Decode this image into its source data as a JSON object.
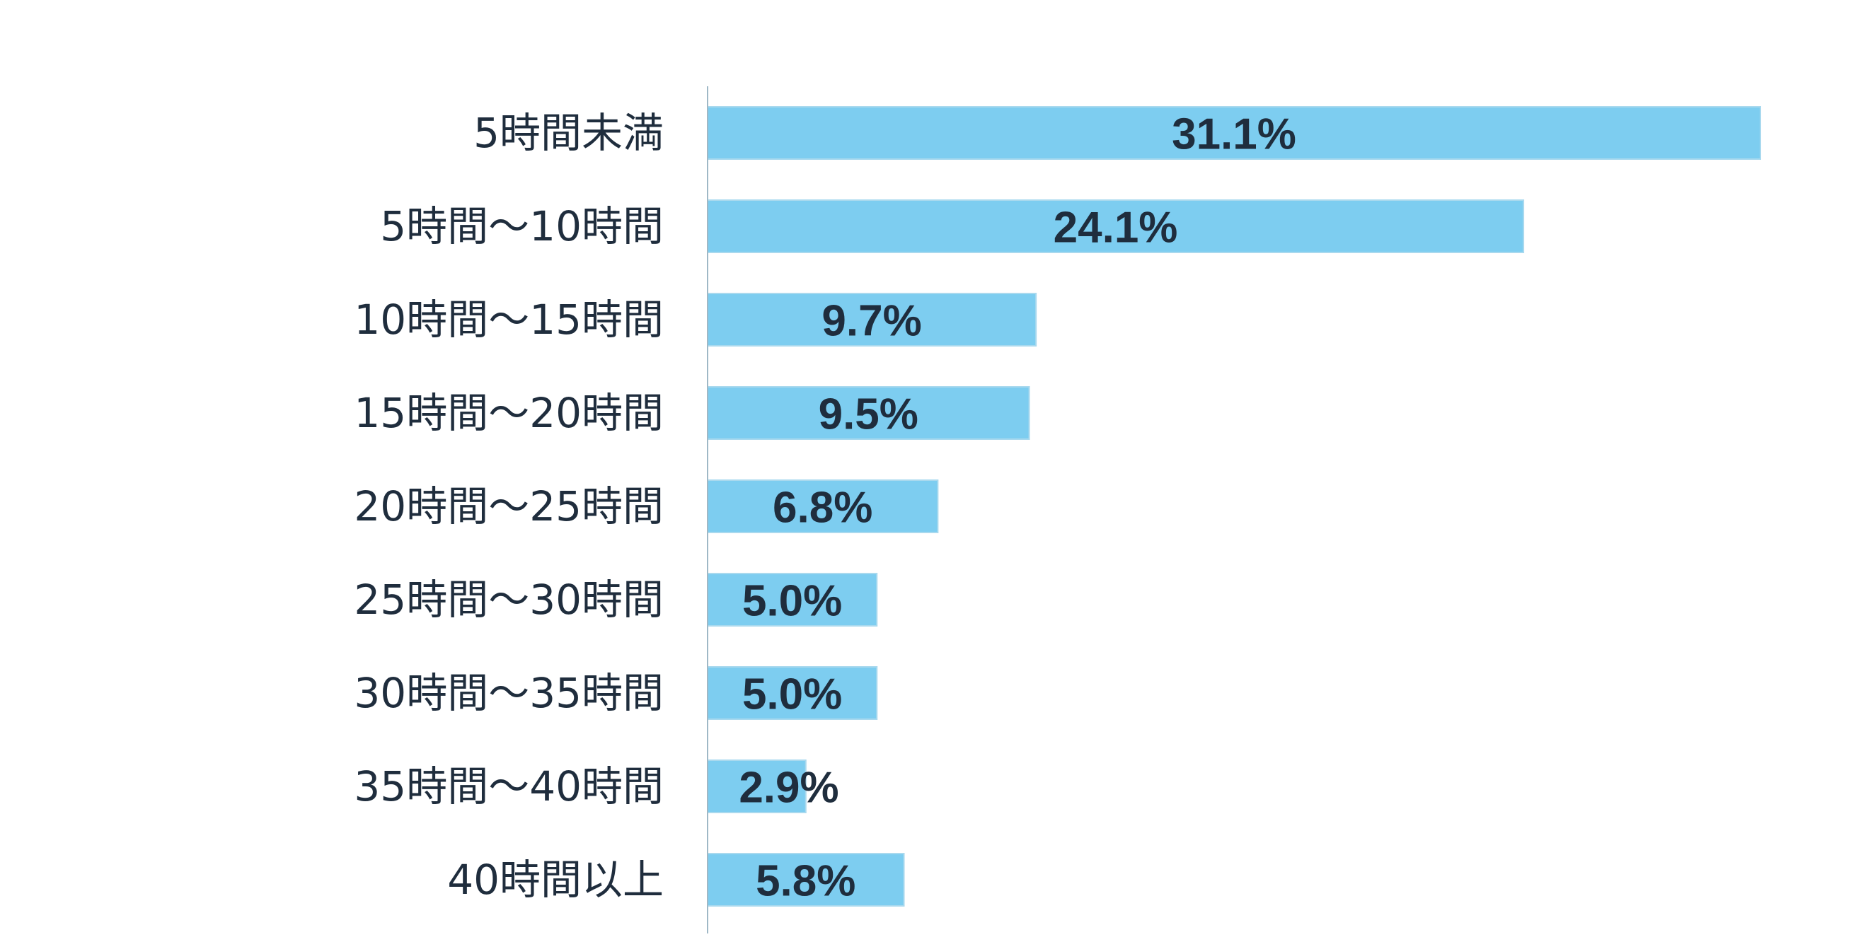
{
  "chart_data": {
    "type": "bar",
    "orientation": "horizontal",
    "categories": [
      "5時間未満",
      "5時間〜10時間",
      "10時間〜15時間",
      "15時間〜20時間",
      "20時間〜25時間",
      "25時間〜30時間",
      "30時間〜35時間",
      "35時間〜40時間",
      "40時間以上"
    ],
    "values": [
      31.1,
      24.1,
      9.7,
      9.5,
      6.8,
      5.0,
      5.0,
      2.9,
      5.8
    ],
    "value_labels": [
      "31.1%",
      "24.1%",
      "9.7%",
      "9.5%",
      "6.8%",
      "5.0%",
      "5.0%",
      "2.9%",
      "5.8%"
    ],
    "unit": "%",
    "xlim": [
      0,
      31.1
    ],
    "title": "",
    "xlabel": "",
    "ylabel": "",
    "grid": false,
    "legend": "none"
  },
  "colors": {
    "bar": "#7dcdf0",
    "bar_edge": "#a9d9ee",
    "axis": "#9fb8c6",
    "text": "#1f2d3d"
  }
}
